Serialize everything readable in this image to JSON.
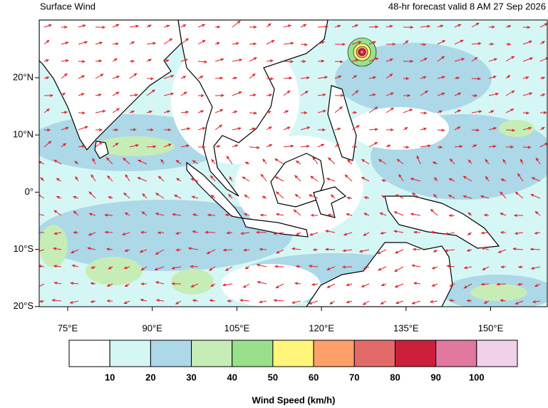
{
  "map": {
    "title": "Surface Wind",
    "subtitle": "48-hr forecast valid 8 AM 27 Sep 2026",
    "lon_labels": [
      "75°E",
      "90°E",
      "105°E",
      "120°E",
      "135°E",
      "150°E"
    ],
    "lat_labels": [
      "20°N",
      "10°N",
      "0°",
      "10°S",
      "20°S"
    ],
    "legend": {
      "title": "Wind Speed (km/h)",
      "colors": [
        "#ffffff",
        "#d4f7f5",
        "#acd8e8",
        "#c6edb6",
        "#98e08a",
        "#fff57a",
        "#ff9f6a",
        "#e46a6a",
        "#cc1f3c",
        "#e078a0",
        "#f1d0ea"
      ],
      "labels": [
        "10",
        "20",
        "30",
        "40",
        "50",
        "60",
        "70",
        "80",
        "90",
        "100"
      ]
    }
  }
}
